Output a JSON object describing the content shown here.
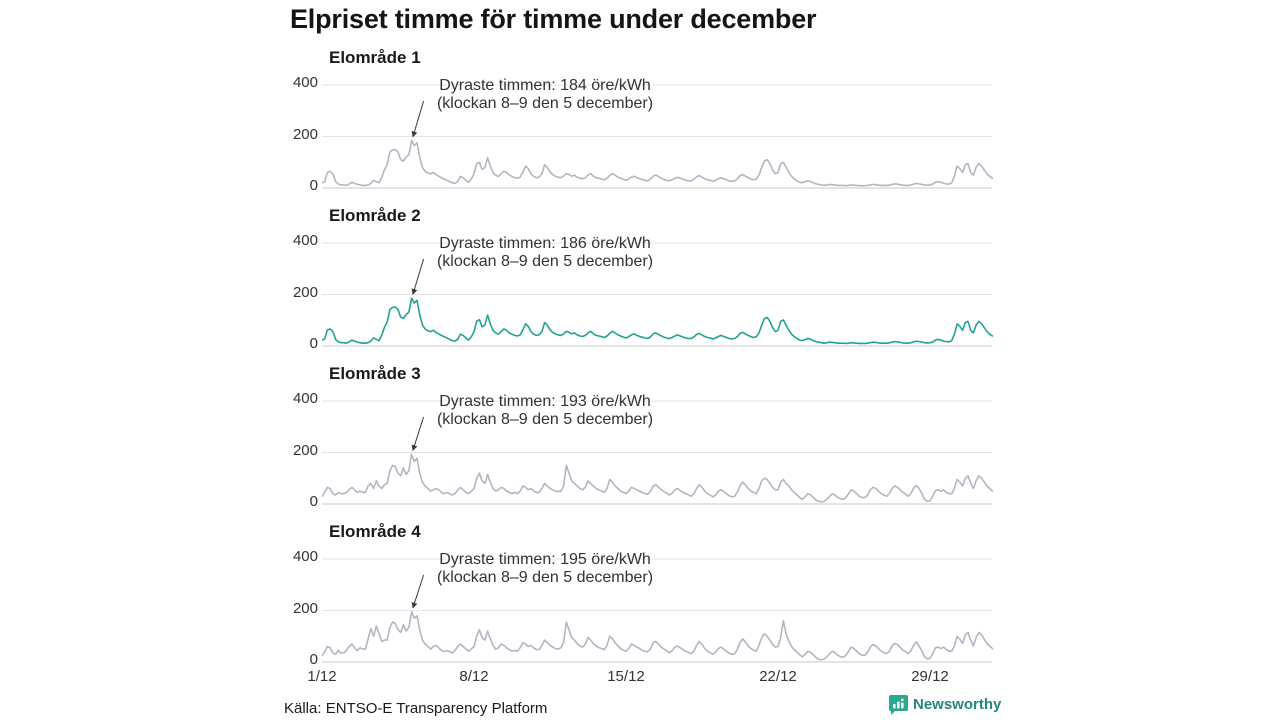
{
  "title": "Elpriset timme för timme under december",
  "source": "Källa: ENTSO-E Transparency Platform",
  "logo": {
    "text": "Newsworthy",
    "icon": "bar-chart-speech-bubble",
    "icon_color": "#2ba890",
    "text_color": "#27857c"
  },
  "colors": {
    "line_default": "#b6b3c4",
    "line_accent": "#21a392",
    "grid": "#e4e4e4",
    "zero_line": "#c9c9c9",
    "text": "#333333"
  },
  "chart_data": {
    "type": "line",
    "unit": "öre/kWh",
    "x_ticks": [
      "1/12",
      "8/12",
      "15/12",
      "22/12",
      "29/12"
    ],
    "y_ticks": [
      "400",
      "200",
      "0"
    ],
    "ylim": [
      0,
      400
    ],
    "x_start": "1/12",
    "x_end": "31/12",
    "points_per_day": 8,
    "grid": "horizontal-only",
    "legend": "none",
    "series": [
      {
        "name": "Elområde 1",
        "color": "#b6b3c4",
        "annotation": {
          "line1": "Dyraste timmen: 184 öre/kWh",
          "line2": "(klockan 8–9 den 5 december)"
        },
        "peak_value": 184,
        "values": [
          20,
          25,
          60,
          65,
          55,
          25,
          15,
          12,
          12,
          10,
          15,
          22,
          18,
          14,
          12,
          10,
          10,
          12,
          18,
          30,
          25,
          20,
          40,
          70,
          90,
          140,
          148,
          150,
          140,
          110,
          105,
          120,
          130,
          184,
          165,
          175,
          120,
          80,
          65,
          58,
          55,
          60,
          52,
          46,
          40,
          35,
          30,
          25,
          20,
          18,
          25,
          45,
          40,
          30,
          22,
          35,
          55,
          95,
          100,
          72,
          80,
          118,
          85,
          60,
          50,
          45,
          55,
          65,
          60,
          50,
          45,
          40,
          38,
          42,
          62,
          85,
          75,
          55,
          45,
          40,
          42,
          55,
          90,
          80,
          62,
          52,
          46,
          42,
          40,
          46,
          56,
          52,
          46,
          50,
          42,
          38,
          36,
          40,
          50,
          56,
          46,
          40,
          38,
          35,
          32,
          38,
          48,
          56,
          50,
          42,
          38,
          34,
          30,
          35,
          42,
          46,
          40,
          36,
          33,
          30,
          28,
          34,
          46,
          50,
          44,
          38,
          33,
          30,
          28,
          32,
          38,
          42,
          38,
          34,
          30,
          28,
          28,
          34,
          44,
          48,
          42,
          36,
          32,
          30,
          26,
          30,
          36,
          40,
          36,
          32,
          28,
          26,
          28,
          35,
          48,
          52,
          46,
          40,
          35,
          32,
          35,
          50,
          80,
          105,
          110,
          95,
          70,
          55,
          60,
          95,
          100,
          80,
          60,
          45,
          35,
          28,
          22,
          20,
          24,
          28,
          25,
          20,
          16,
          14,
          12,
          10,
          12,
          14,
          13,
          12,
          10,
          10,
          10,
          9,
          10,
          12,
          11,
          10,
          9,
          9,
          9,
          10,
          12,
          14,
          13,
          11,
          10,
          10,
          10,
          11,
          14,
          16,
          15,
          13,
          11,
          10,
          10,
          12,
          15,
          18,
          16,
          14,
          12,
          11,
          12,
          15,
          22,
          25,
          22,
          18,
          16,
          15,
          20,
          45,
          85,
          75,
          60,
          90,
          95,
          60,
          50,
          80,
          95,
          85,
          70,
          55,
          45,
          38
        ]
      },
      {
        "name": "Elområde 2",
        "color": "#21a392",
        "annotation": {
          "line1": "Dyraste timmen: 186 öre/kWh",
          "line2": "(klockan 8–9 den 5 december)"
        },
        "peak_value": 186,
        "values": [
          22,
          28,
          62,
          66,
          56,
          26,
          16,
          13,
          13,
          11,
          16,
          23,
          19,
          15,
          13,
          11,
          11,
          13,
          19,
          32,
          26,
          21,
          42,
          72,
          92,
          142,
          150,
          152,
          142,
          112,
          107,
          122,
          132,
          186,
          167,
          177,
          122,
          82,
          66,
          59,
          56,
          61,
          53,
          47,
          41,
          36,
          31,
          26,
          21,
          19,
          26,
          46,
          41,
          31,
          23,
          36,
          56,
          96,
          102,
          74,
          82,
          120,
          86,
          61,
          51,
          46,
          56,
          66,
          61,
          51,
          46,
          41,
          39,
          43,
          63,
          86,
          76,
          56,
          46,
          41,
          43,
          56,
          91,
          81,
          63,
          53,
          47,
          43,
          41,
          47,
          57,
          53,
          47,
          51,
          43,
          39,
          37,
          41,
          51,
          57,
          47,
          41,
          39,
          36,
          33,
          39,
          49,
          57,
          51,
          43,
          39,
          35,
          31,
          36,
          43,
          47,
          41,
          37,
          34,
          31,
          29,
          35,
          47,
          51,
          45,
          39,
          34,
          31,
          29,
          33,
          39,
          43,
          39,
          35,
          31,
          29,
          29,
          35,
          45,
          49,
          43,
          37,
          33,
          31,
          27,
          31,
          37,
          41,
          37,
          33,
          29,
          27,
          29,
          36,
          49,
          53,
          47,
          41,
          36,
          33,
          36,
          51,
          81,
          106,
          111,
          96,
          71,
          56,
          61,
          96,
          101,
          81,
          61,
          46,
          36,
          29,
          23,
          21,
          25,
          29,
          26,
          21,
          17,
          15,
          13,
          11,
          13,
          15,
          14,
          13,
          11,
          11,
          11,
          10,
          11,
          13,
          12,
          11,
          10,
          10,
          10,
          11,
          13,
          15,
          14,
          12,
          11,
          11,
          11,
          12,
          15,
          17,
          16,
          14,
          12,
          11,
          11,
          13,
          16,
          19,
          17,
          15,
          13,
          12,
          13,
          16,
          23,
          26,
          23,
          19,
          17,
          16,
          21,
          46,
          86,
          76,
          61,
          91,
          96,
          61,
          51,
          81,
          96,
          86,
          71,
          56,
          46,
          39
        ]
      },
      {
        "name": "Elområde 3",
        "color": "#b6b3c4",
        "annotation": {
          "line1": "Dyraste timmen: 193 öre/kWh",
          "line2": "(klockan 8–9 den 5 december)"
        },
        "peak_value": 193,
        "values": [
          30,
          45,
          65,
          60,
          40,
          35,
          45,
          40,
          40,
          45,
          55,
          65,
          55,
          45,
          50,
          45,
          45,
          70,
          80,
          60,
          90,
          70,
          60,
          75,
          80,
          130,
          150,
          145,
          120,
          110,
          140,
          115,
          130,
          193,
          165,
          178,
          120,
          85,
          70,
          60,
          50,
          55,
          60,
          55,
          45,
          40,
          45,
          40,
          35,
          40,
          55,
          65,
          55,
          45,
          40,
          50,
          60,
          100,
          120,
          90,
          80,
          115,
          85,
          60,
          50,
          55,
          65,
          60,
          50,
          45,
          40,
          45,
          40,
          50,
          70,
          65,
          55,
          60,
          50,
          45,
          45,
          60,
          80,
          70,
          60,
          55,
          50,
          48,
          50,
          70,
          150,
          120,
          90,
          80,
          70,
          60,
          55,
          65,
          90,
          80,
          70,
          60,
          55,
          50,
          45,
          60,
          95,
          85,
          70,
          60,
          50,
          45,
          40,
          50,
          65,
          60,
          55,
          50,
          45,
          40,
          38,
          48,
          70,
          75,
          65,
          55,
          48,
          42,
          35,
          42,
          55,
          60,
          52,
          45,
          40,
          36,
          30,
          40,
          60,
          75,
          65,
          50,
          40,
          35,
          28,
          35,
          50,
          55,
          48,
          40,
          32,
          28,
          30,
          45,
          70,
          85,
          75,
          60,
          50,
          45,
          40,
          60,
          90,
          100,
          95,
          80,
          65,
          55,
          55,
          85,
          95,
          80,
          70,
          55,
          45,
          35,
          25,
          18,
          28,
          40,
          35,
          26,
          16,
          10,
          8,
          10,
          18,
          30,
          40,
          35,
          25,
          20,
          18,
          25,
          40,
          55,
          50,
          40,
          30,
          25,
          25,
          35,
          55,
          65,
          60,
          50,
          40,
          35,
          30,
          40,
          60,
          70,
          65,
          55,
          45,
          38,
          30,
          42,
          62,
          72,
          60,
          40,
          18,
          10,
          12,
          30,
          52,
          55,
          50,
          55,
          45,
          40,
          40,
          60,
          95,
          85,
          70,
          100,
          110,
          80,
          60,
          90,
          110,
          100,
          85,
          70,
          60,
          50
        ]
      },
      {
        "name": "Elområde 4",
        "color": "#b6b3c4",
        "annotation": {
          "line1": "Dyraste timmen: 195 öre/kWh",
          "line2": "(klockan 8–9 den 5 december)"
        },
        "peak_value": 195,
        "values": [
          25,
          40,
          60,
          55,
          35,
          30,
          45,
          35,
          35,
          45,
          60,
          70,
          55,
          45,
          55,
          50,
          50,
          90,
          130,
          100,
          140,
          110,
          80,
          85,
          85,
          135,
          155,
          150,
          125,
          115,
          145,
          120,
          135,
          195,
          170,
          180,
          125,
          85,
          70,
          60,
          50,
          60,
          65,
          55,
          45,
          40,
          45,
          40,
          35,
          45,
          60,
          70,
          60,
          50,
          42,
          50,
          60,
          100,
          125,
          95,
          85,
          120,
          90,
          65,
          50,
          55,
          70,
          65,
          55,
          48,
          42,
          45,
          42,
          55,
          75,
          70,
          60,
          65,
          55,
          48,
          48,
          65,
          85,
          75,
          65,
          58,
          52,
          50,
          55,
          75,
          155,
          125,
          95,
          85,
          72,
          62,
          58,
          70,
          95,
          85,
          72,
          62,
          56,
          52,
          48,
          65,
          100,
          90,
          75,
          62,
          52,
          46,
          42,
          52,
          70,
          65,
          58,
          52,
          46,
          42,
          40,
          50,
          75,
          80,
          68,
          58,
          50,
          44,
          36,
          44,
          58,
          62,
          55,
          48,
          42,
          38,
          32,
          42,
          65,
          80,
          68,
          52,
          42,
          36,
          30,
          38,
          52,
          58,
          50,
          42,
          34,
          30,
          32,
          48,
          75,
          90,
          78,
          62,
          52,
          46,
          42,
          65,
          95,
          110,
          100,
          85,
          68,
          58,
          60,
          95,
          160,
          110,
          80,
          60,
          48,
          38,
          28,
          20,
          30,
          42,
          38,
          28,
          18,
          10,
          9,
          11,
          20,
          32,
          42,
          36,
          26,
          21,
          19,
          26,
          42,
          58,
          52,
          42,
          32,
          26,
          26,
          38,
          58,
          68,
          62,
          52,
          42,
          36,
          32,
          42,
          62,
          72,
          68,
          58,
          46,
          40,
          32,
          45,
          65,
          78,
          62,
          42,
          20,
          12,
          14,
          32,
          55,
          58,
          52,
          58,
          48,
          42,
          42,
          62,
          100,
          88,
          72,
          105,
          115,
          85,
          62,
          95,
          115,
          105,
          88,
          72,
          62,
          52
        ]
      }
    ]
  }
}
